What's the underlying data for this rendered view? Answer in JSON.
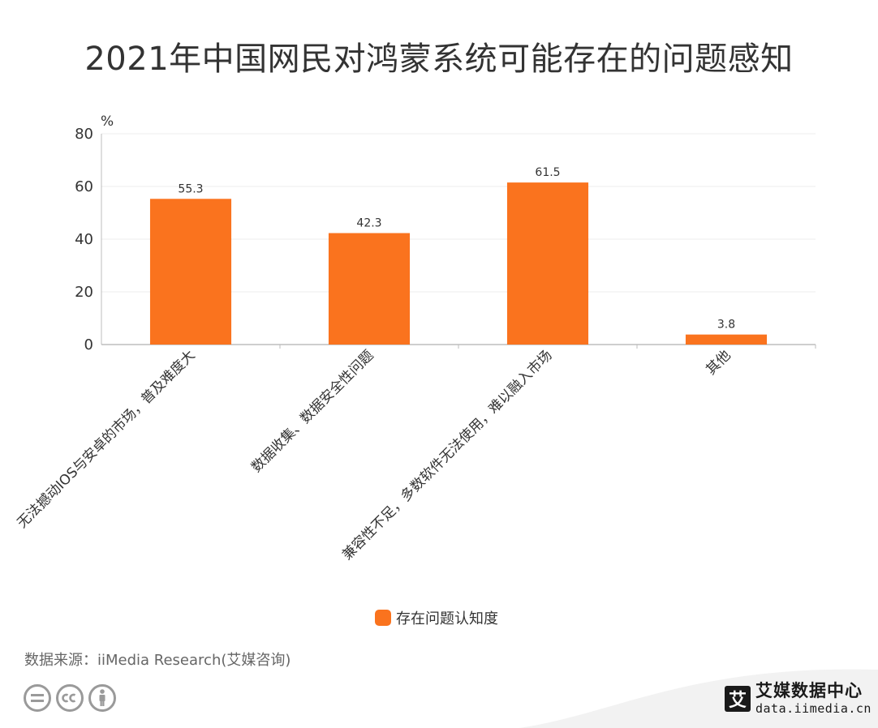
{
  "title": "2021年中国网民对鸿蒙系统可能存在的问题感知",
  "source": "数据来源：iiMedia Research(艾媒咨询)",
  "brand": {
    "logo_char": "艾",
    "name": "艾媒数据中心",
    "url": "data.iimedia.cn"
  },
  "colors": {
    "bar": "#fa731e",
    "axis": "#bdbdbd",
    "grid": "#ececec",
    "text": "#333333"
  },
  "icons": [
    "equals-icon",
    "cc-icon",
    "attribution-person-icon"
  ],
  "chart_data": {
    "type": "bar",
    "title": "2021年中国网民对鸿蒙系统可能存在的问题感知",
    "ylabel": "%",
    "xlabel": "",
    "ylim": [
      0,
      80
    ],
    "yticks": [
      0,
      20,
      40,
      60,
      80
    ],
    "grid": true,
    "legend_position": "bottom",
    "categories": [
      "无法撼动IOS与安卓的市场，普及难度大",
      "数据收集、数据安全性问题",
      "兼容性不足，多数软件无法使用，难以融入市场",
      "其他"
    ],
    "series": [
      {
        "name": "存在问题认知度",
        "values": [
          55.3,
          42.3,
          61.5,
          3.8
        ]
      }
    ]
  }
}
